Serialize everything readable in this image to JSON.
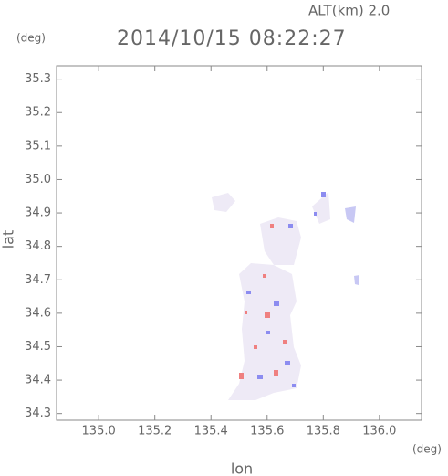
{
  "chart_data": {
    "type": "map",
    "title": "2014/10/15 08:22:27",
    "subtitle": "ALT(km) 2.0",
    "x_label": "lon",
    "y_label": "lat",
    "x_unit": "(deg)",
    "y_unit": "(deg)",
    "xlim": [
      134.85,
      136.15
    ],
    "ylim": [
      34.28,
      35.34
    ],
    "xticks": [
      {
        "value": 135,
        "label": "135.0"
      },
      135.2,
      135.4,
      135.6,
      135.8,
      {
        "value": 136,
        "label": "136.0"
      }
    ],
    "yticks": [
      34.3,
      34.4,
      34.5,
      34.6,
      34.7,
      34.8,
      34.9,
      {
        "value": 35,
        "label": "35.0"
      },
      35.1,
      35.2,
      35.3
    ]
  }
}
